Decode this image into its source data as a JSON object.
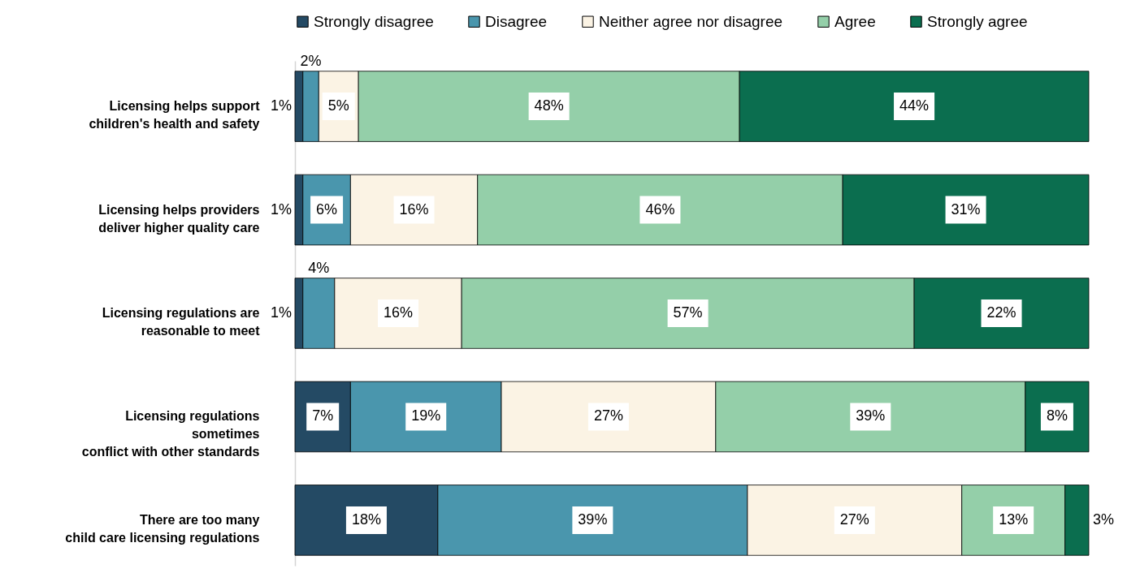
{
  "chart_data": {
    "type": "bar",
    "orientation": "horizontal",
    "stacked": true,
    "categories": [
      "Licensing helps support\nchildren's health and safety",
      "Licensing helps providers\ndeliver higher quality care",
      "Licensing regulations are\nreasonable to meet",
      "Licensing regulations\nsometimes\nconflict with other standards",
      "There are too many\nchild care licensing regulations"
    ],
    "series": [
      {
        "name": "Strongly disagree",
        "color": "#244a64",
        "values": [
          1,
          1,
          1,
          7,
          18
        ],
        "value_labels": [
          "1%",
          "1%",
          "1%",
          "7%",
          "18%"
        ]
      },
      {
        "name": "Disagree",
        "color": "#4a96ad",
        "values": [
          2,
          6,
          4,
          19,
          39
        ],
        "value_labels": [
          "2%",
          "6%",
          "4%",
          "19%",
          "39%"
        ]
      },
      {
        "name": "Neither agree nor disagree",
        "color": "#fbf3e4",
        "values": [
          5,
          16,
          16,
          27,
          27
        ],
        "value_labels": [
          "5%",
          "16%",
          "16%",
          "27%",
          "27%"
        ]
      },
      {
        "name": "Agree",
        "color": "#94cfa9",
        "values": [
          48,
          46,
          57,
          39,
          13
        ],
        "value_labels": [
          "48%",
          "46%",
          "57%",
          "39%",
          "13%"
        ]
      },
      {
        "name": "Strongly agree",
        "color": "#0b6e4f",
        "values": [
          44,
          31,
          22,
          8,
          3
        ],
        "value_labels": [
          "44%",
          "31%",
          "22%",
          "8%",
          "3%"
        ]
      }
    ],
    "xlim": [
      0,
      100
    ],
    "legend": "top",
    "tick_labels": "y"
  }
}
